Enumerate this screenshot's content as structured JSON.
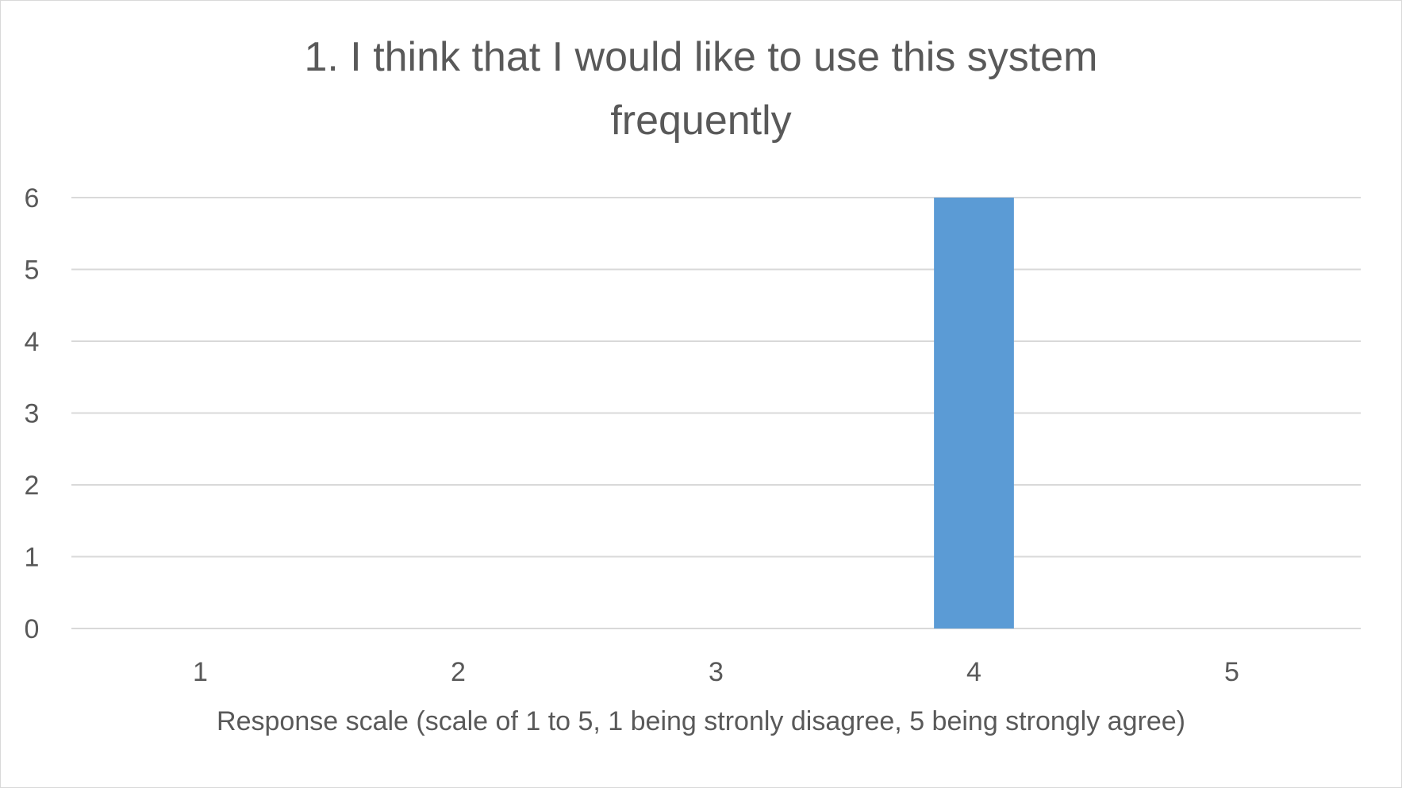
{
  "chart_data": {
    "type": "bar",
    "title_lines": [
      "1. I think that I would like to use this system",
      "frequently"
    ],
    "categories": [
      "1",
      "2",
      "3",
      "4",
      "5"
    ],
    "values": [
      0,
      0,
      0,
      6,
      0
    ],
    "xlabel": "Response scale (scale of 1 to 5, 1 being stronly disagree, 5 being strongly agree)",
    "ylabel": "",
    "ylim": [
      0,
      6
    ],
    "yticks": [
      "0",
      "1",
      "2",
      "3",
      "4",
      "5",
      "6"
    ],
    "grid": true,
    "legend": "none",
    "bar_color": "#5b9bd5",
    "grid_color": "#d9d9d9"
  }
}
